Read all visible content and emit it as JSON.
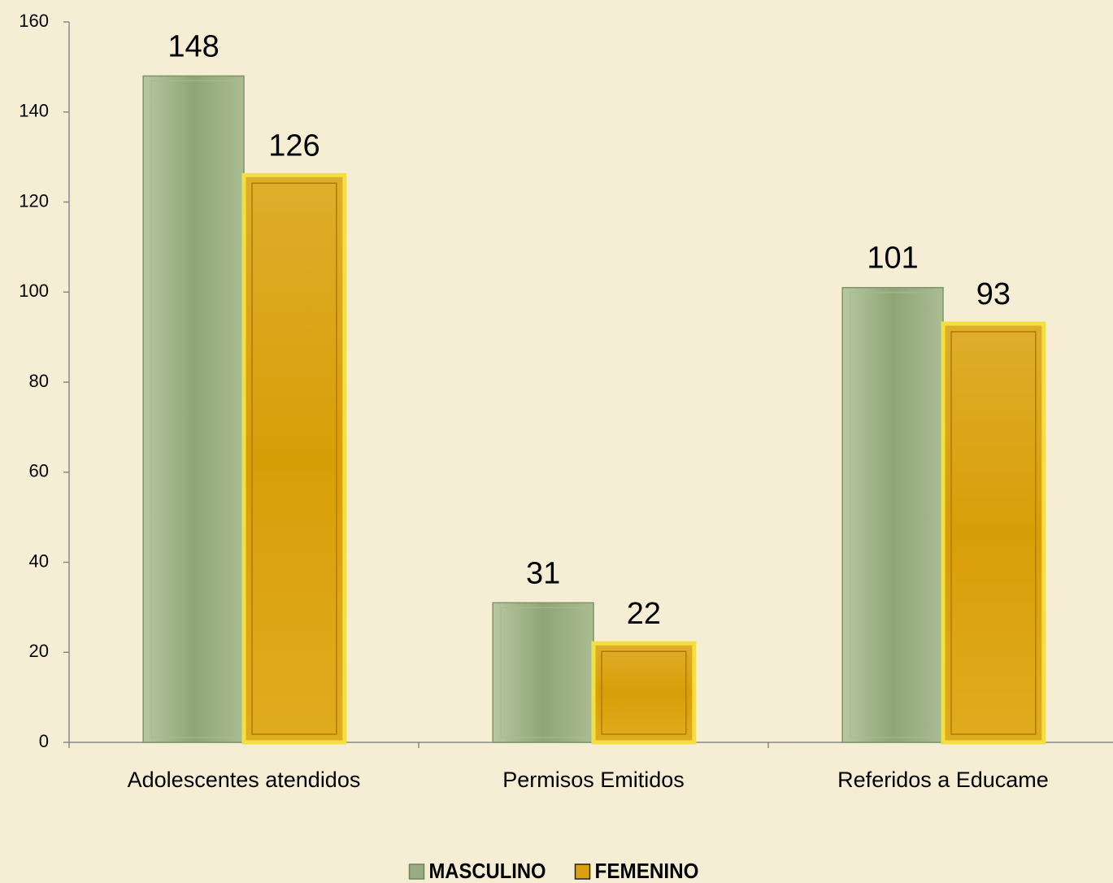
{
  "chart_data": {
    "type": "bar",
    "categories": [
      "Adolescentes atendidos",
      "Permisos Emitidos",
      "Referidos a Educame"
    ],
    "series": [
      {
        "name": "MASCULINO",
        "color": "#98ab82",
        "values": [
          148,
          31,
          101
        ]
      },
      {
        "name": "FEMENINO",
        "color": "#d9a010",
        "values": [
          126,
          22,
          93
        ]
      }
    ],
    "ylim": [
      0,
      160
    ],
    "yticks": [
      0,
      20,
      40,
      60,
      80,
      100,
      120,
      140,
      160
    ],
    "grid": false,
    "legend": "bottom"
  }
}
